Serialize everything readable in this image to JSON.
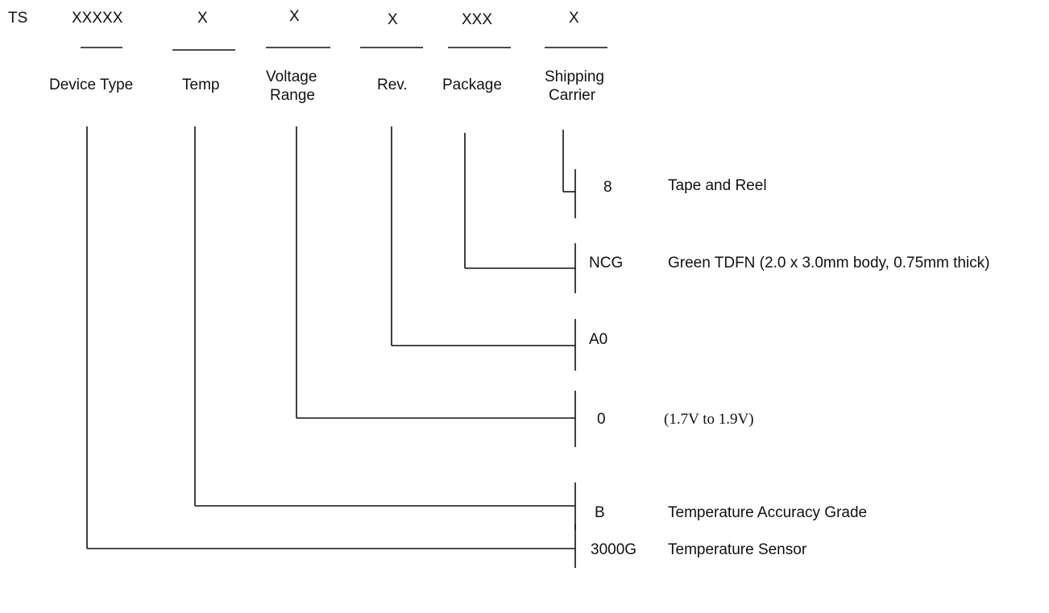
{
  "prefix": "TS",
  "fields": [
    {
      "code": "XXXXX",
      "label1": "Device Type",
      "label2": ""
    },
    {
      "code": "X",
      "label1": "Temp",
      "label2": ""
    },
    {
      "code": "X",
      "label1": "Voltage",
      "label2": "Range"
    },
    {
      "code": "X",
      "label1": "Rev.",
      "label2": ""
    },
    {
      "code": "XXX",
      "label1": "Package",
      "label2": ""
    },
    {
      "code": "X",
      "label1": "Shipping",
      "label2": "Carrier"
    }
  ],
  "options": [
    {
      "value": "8",
      "desc": "Tape and Reel"
    },
    {
      "value": "NCG",
      "desc": "Green TDFN (2.0 x 3.0mm body, 0.75mm thick)"
    },
    {
      "value": "A0",
      "desc": ""
    },
    {
      "value": "0",
      "desc": "(1.7V to 1.9V)"
    },
    {
      "value": "B",
      "desc": "Temperature Accuracy Grade"
    },
    {
      "value": "3000G",
      "desc": "Temperature Sensor"
    }
  ]
}
